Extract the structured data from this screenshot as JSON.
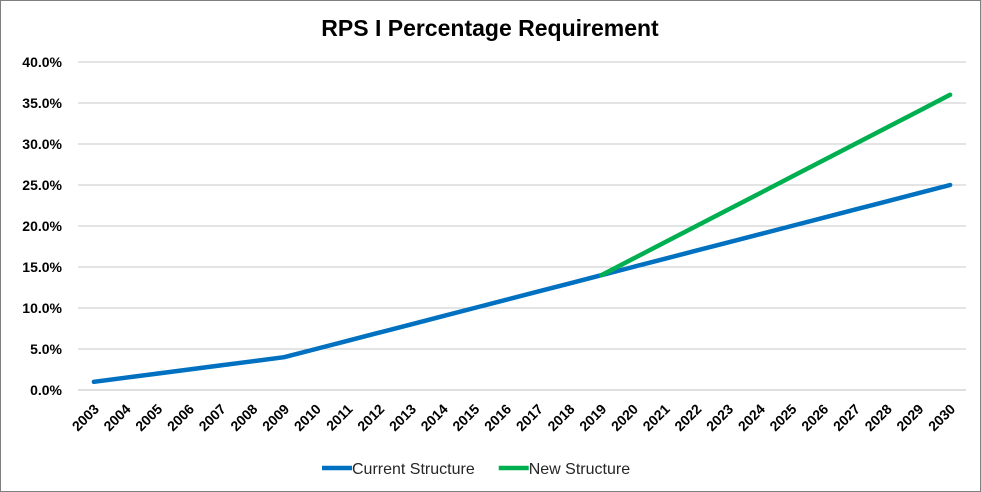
{
  "chart_data": {
    "type": "line",
    "title": "RPS I Percentage Requirement",
    "xlabel": "",
    "ylabel": "",
    "x": [
      "2003",
      "2004",
      "2005",
      "2006",
      "2007",
      "2008",
      "2009",
      "2010",
      "2011",
      "2012",
      "2013",
      "2014",
      "2015",
      "2016",
      "2017",
      "2018",
      "2019",
      "2020",
      "2021",
      "2022",
      "2023",
      "2024",
      "2025",
      "2026",
      "2027",
      "2028",
      "2029",
      "2030"
    ],
    "ylim": [
      0,
      40
    ],
    "yticks": [
      "0.0%",
      "5.0%",
      "10.0%",
      "15.0%",
      "20.0%",
      "25.0%",
      "30.0%",
      "35.0%",
      "40.0%"
    ],
    "grid": true,
    "legend_position": "bottom",
    "series": [
      {
        "name": "Current Structure",
        "color": "#0070c0",
        "values": [
          1.0,
          1.5,
          2.0,
          2.5,
          3.0,
          3.5,
          4.0,
          5.0,
          6.0,
          7.0,
          8.0,
          9.0,
          10.0,
          11.0,
          12.0,
          13.0,
          14.0,
          15.0,
          16.0,
          17.0,
          18.0,
          19.0,
          20.0,
          21.0,
          22.0,
          23.0,
          24.0,
          25.0
        ]
      },
      {
        "name": "New Structure",
        "color": "#00b050",
        "values": [
          null,
          null,
          null,
          null,
          null,
          null,
          null,
          null,
          null,
          null,
          null,
          null,
          null,
          null,
          null,
          null,
          14.0,
          16.0,
          18.0,
          20.0,
          22.0,
          24.0,
          26.0,
          28.0,
          30.0,
          32.0,
          34.0,
          36.0
        ]
      }
    ]
  }
}
